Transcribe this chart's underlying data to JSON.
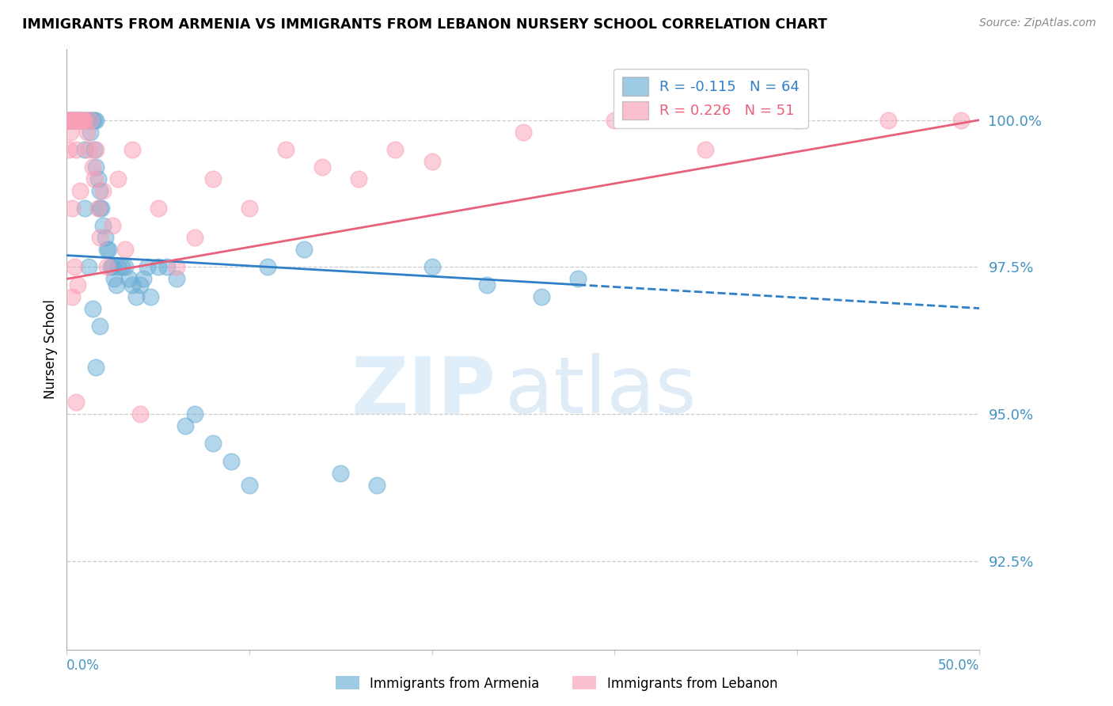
{
  "title": "IMMIGRANTS FROM ARMENIA VS IMMIGRANTS FROM LEBANON NURSERY SCHOOL CORRELATION CHART",
  "source": "Source: ZipAtlas.com",
  "ylabel": "Nursery School",
  "yticks": [
    92.5,
    95.0,
    97.5,
    100.0
  ],
  "ytick_labels": [
    "92.5%",
    "95.0%",
    "97.5%",
    "100.0%"
  ],
  "xmin": 0.0,
  "xmax": 0.5,
  "ymin": 91.0,
  "ymax": 101.2,
  "legend_r1": "R = -0.115",
  "legend_n1": "N = 64",
  "legend_r2": "R = 0.226",
  "legend_n2": "N = 51",
  "color_armenia": "#6baed6",
  "color_lebanon": "#fa9fb5",
  "color_trendline_armenia": "#3080c8",
  "color_trendline_lebanon": "#e8607a",
  "color_axis_labels": "#4393c3",
  "trendline_arm_x0": 0.0,
  "trendline_arm_y0": 97.7,
  "trendline_arm_x1": 0.28,
  "trendline_arm_y1": 97.2,
  "trendline_arm_dash_x1": 0.5,
  "trendline_arm_dash_y1": 96.8,
  "trendline_leb_x0": 0.0,
  "trendline_leb_y0": 97.3,
  "trendline_leb_x1": 0.5,
  "trendline_leb_y1": 100.0,
  "armenia_x": [
    0.001,
    0.002,
    0.002,
    0.003,
    0.004,
    0.005,
    0.006,
    0.007,
    0.008,
    0.009,
    0.01,
    0.01,
    0.011,
    0.012,
    0.013,
    0.013,
    0.014,
    0.015,
    0.015,
    0.016,
    0.016,
    0.017,
    0.018,
    0.018,
    0.019,
    0.02,
    0.021,
    0.022,
    0.023,
    0.024,
    0.025,
    0.026,
    0.027,
    0.028,
    0.03,
    0.032,
    0.034,
    0.036,
    0.038,
    0.04,
    0.042,
    0.044,
    0.046,
    0.05,
    0.055,
    0.06,
    0.065,
    0.07,
    0.08,
    0.09,
    0.1,
    0.11,
    0.13,
    0.15,
    0.17,
    0.2,
    0.23,
    0.26,
    0.28,
    0.01,
    0.012,
    0.014,
    0.016,
    0.018
  ],
  "armenia_y": [
    100.0,
    100.0,
    100.0,
    100.0,
    100.0,
    100.0,
    100.0,
    100.0,
    100.0,
    100.0,
    100.0,
    99.5,
    100.0,
    100.0,
    100.0,
    99.8,
    100.0,
    100.0,
    99.5,
    100.0,
    99.2,
    99.0,
    98.8,
    98.5,
    98.5,
    98.2,
    98.0,
    97.8,
    97.8,
    97.5,
    97.5,
    97.3,
    97.2,
    97.5,
    97.5,
    97.5,
    97.3,
    97.2,
    97.0,
    97.2,
    97.3,
    97.5,
    97.0,
    97.5,
    97.5,
    97.3,
    94.8,
    95.0,
    94.5,
    94.2,
    93.8,
    97.5,
    97.8,
    94.0,
    93.8,
    97.5,
    97.2,
    97.0,
    97.3,
    98.5,
    97.5,
    96.8,
    95.8,
    96.5
  ],
  "lebanon_x": [
    0.001,
    0.001,
    0.001,
    0.002,
    0.002,
    0.003,
    0.004,
    0.005,
    0.005,
    0.006,
    0.007,
    0.008,
    0.009,
    0.01,
    0.011,
    0.012,
    0.013,
    0.014,
    0.015,
    0.016,
    0.017,
    0.018,
    0.02,
    0.022,
    0.025,
    0.028,
    0.032,
    0.036,
    0.04,
    0.05,
    0.06,
    0.07,
    0.08,
    0.1,
    0.12,
    0.14,
    0.16,
    0.18,
    0.2,
    0.25,
    0.3,
    0.35,
    0.4,
    0.45,
    0.49,
    0.003,
    0.003,
    0.004,
    0.005,
    0.006,
    0.007
  ],
  "lebanon_y": [
    100.0,
    100.0,
    99.5,
    100.0,
    99.8,
    100.0,
    100.0,
    100.0,
    99.5,
    100.0,
    100.0,
    100.0,
    100.0,
    100.0,
    99.8,
    99.5,
    100.0,
    99.2,
    99.0,
    99.5,
    98.5,
    98.0,
    98.8,
    97.5,
    98.2,
    99.0,
    97.8,
    99.5,
    95.0,
    98.5,
    97.5,
    98.0,
    99.0,
    98.5,
    99.5,
    99.2,
    99.0,
    99.5,
    99.3,
    99.8,
    100.0,
    99.5,
    100.0,
    100.0,
    100.0,
    97.0,
    98.5,
    97.5,
    95.2,
    97.2,
    98.8
  ]
}
